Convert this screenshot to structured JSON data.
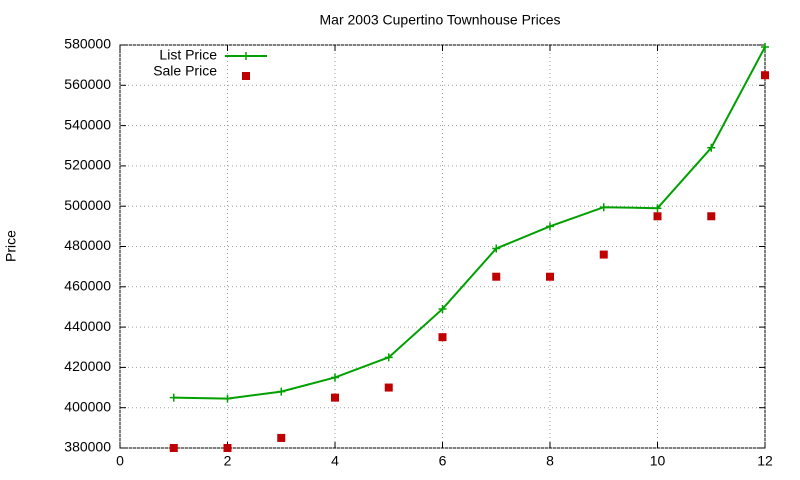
{
  "chart_data": {
    "type": "line",
    "title": "Mar 2003 Cupertino Townhouse Prices",
    "y_label": "Price",
    "x": [
      1,
      2,
      3,
      4,
      5,
      6,
      7,
      8,
      9,
      10,
      11,
      12
    ],
    "series": [
      {
        "name": "List Price",
        "color": "#00a000",
        "mode": "linespoints",
        "values": [
          405000,
          404500,
          408000,
          415000,
          425000,
          449000,
          479000,
          490000,
          499500,
          499000,
          529000,
          579000
        ]
      },
      {
        "name": "Sale Price",
        "color": "#c00000",
        "mode": "points",
        "values": [
          380000,
          380000,
          385000,
          405000,
          410000,
          435000,
          465000,
          465000,
          476000,
          495000,
          495000,
          565000
        ]
      }
    ],
    "xlim": [
      0,
      12
    ],
    "ylim": [
      380000,
      580000
    ],
    "xticks": [
      0,
      2,
      4,
      6,
      8,
      10,
      12
    ],
    "yticks": [
      380000,
      400000,
      420000,
      440000,
      460000,
      480000,
      500000,
      520000,
      540000,
      560000,
      580000
    ],
    "grid": true,
    "legend": "top-left"
  }
}
